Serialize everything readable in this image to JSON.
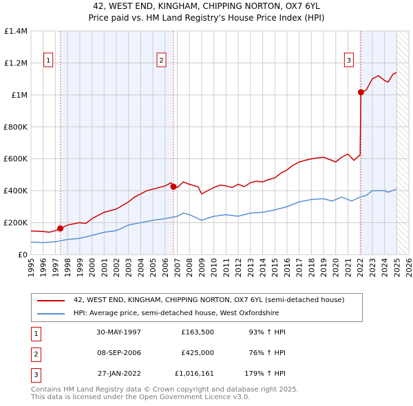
{
  "chart_data": {
    "type": "line",
    "title": "42, WEST END, KINGHAM, CHIPPING NORTON, OX7 6YL",
    "subtitle": "Price paid vs. HM Land Registry's House Price Index (HPI)",
    "xlim": [
      1995,
      2026
    ],
    "ylim": [
      0,
      1400000
    ],
    "x_ticks": [
      "1995",
      "1996",
      "1997",
      "1998",
      "1999",
      "2000",
      "2001",
      "2002",
      "2003",
      "2004",
      "2005",
      "2006",
      "2007",
      "2008",
      "2009",
      "2010",
      "2011",
      "2012",
      "2013",
      "2014",
      "2015",
      "2016",
      "2017",
      "2018",
      "2019",
      "2020",
      "2021",
      "2022",
      "2023",
      "2024",
      "2025",
      "2026"
    ],
    "y_ticks": [
      {
        "v": 0,
        "label": "£0"
      },
      {
        "v": 200000,
        "label": "£200K"
      },
      {
        "v": 400000,
        "label": "£400K"
      },
      {
        "v": 600000,
        "label": "£600K"
      },
      {
        "v": 800000,
        "label": "£800K"
      },
      {
        "v": 1000000,
        "label": "£1M"
      },
      {
        "v": 1200000,
        "label": "£1.2M"
      },
      {
        "v": 1400000,
        "label": "£1.4M"
      }
    ],
    "grid": true,
    "shaded_ranges": [
      [
        1997.41,
        2006.69
      ],
      [
        2022.07,
        2025.0
      ]
    ],
    "forecast_hatch_from": 2025.0,
    "series": [
      {
        "name": "42, WEST END, KINGHAM, CHIPPING NORTON, OX7 6YL (semi-detached house)",
        "color": "#cc0000",
        "x": [
          1995,
          1996,
          1996.5,
          1997,
          1997.41,
          1998,
          1999,
          1999.5,
          2000,
          2001,
          2002,
          2003,
          2003.5,
          2004,
          2004.5,
          2005,
          2006,
          2006.5,
          2006.69,
          2007,
          2007.5,
          2008,
          2008.7,
          2009,
          2009.5,
          2010,
          2010.5,
          2011,
          2011.5,
          2012,
          2012.5,
          2013,
          2013.5,
          2014,
          2014.5,
          2015,
          2015.5,
          2016,
          2016.5,
          2017,
          2017.5,
          2018,
          2018.5,
          2019,
          2019.5,
          2020,
          2020.5,
          2021,
          2021.5,
          2022,
          2022.07,
          2022.5,
          2023,
          2023.5,
          2024,
          2024.3,
          2024.7,
          2025
        ],
        "y": [
          148000,
          145000,
          140000,
          150000,
          163500,
          185000,
          200000,
          195000,
          225000,
          265000,
          285000,
          330000,
          360000,
          380000,
          400000,
          410000,
          430000,
          450000,
          425000,
          420000,
          455000,
          440000,
          425000,
          380000,
          400000,
          420000,
          435000,
          430000,
          420000,
          440000,
          425000,
          450000,
          460000,
          455000,
          470000,
          480000,
          510000,
          530000,
          560000,
          580000,
          590000,
          600000,
          605000,
          610000,
          595000,
          580000,
          610000,
          630000,
          590000,
          625000,
          1016161,
          1030000,
          1100000,
          1120000,
          1090000,
          1080000,
          1130000,
          1140000
        ]
      },
      {
        "name": "HPI: Average price, semi-detached house, West Oxfordshire",
        "color": "#5b8fd4",
        "x": [
          1995,
          1996,
          1997,
          1998,
          1999,
          2000,
          2001,
          2002,
          2003,
          2004,
          2005,
          2006,
          2007,
          2007.5,
          2008,
          2009,
          2010,
          2011,
          2012,
          2013,
          2014,
          2015,
          2016,
          2017,
          2018,
          2019,
          2019.7,
          2020,
          2020.5,
          2021,
          2021.3,
          2022,
          2022.5,
          2023,
          2024,
          2024.3,
          2025
        ],
        "y": [
          78000,
          75000,
          80000,
          95000,
          102000,
          120000,
          140000,
          150000,
          185000,
          200000,
          215000,
          225000,
          240000,
          260000,
          250000,
          215000,
          240000,
          250000,
          240000,
          260000,
          265000,
          280000,
          300000,
          330000,
          345000,
          350000,
          335000,
          345000,
          360000,
          345000,
          335000,
          360000,
          370000,
          400000,
          400000,
          390000,
          410000
        ]
      }
    ],
    "sales": [
      {
        "id": "1",
        "x": 1997.41,
        "y": 163500,
        "date": "30-MAY-1997",
        "price": "£163,500",
        "hpi": "93% ↑ HPI"
      },
      {
        "id": "2",
        "x": 2006.69,
        "y": 425000,
        "date": "08-SEP-2006",
        "price": "£425,000",
        "hpi": "76% ↑ HPI"
      },
      {
        "id": "3",
        "x": 2022.07,
        "y": 1016161,
        "date": "27-JAN-2022",
        "price": "£1,016,161",
        "hpi": "179% ↑ HPI"
      }
    ]
  },
  "footer": {
    "line1": "Contains HM Land Registry data © Crown copyright and database right 2025.",
    "line2": "This data is licensed under the Open Government Licence v3.0."
  }
}
